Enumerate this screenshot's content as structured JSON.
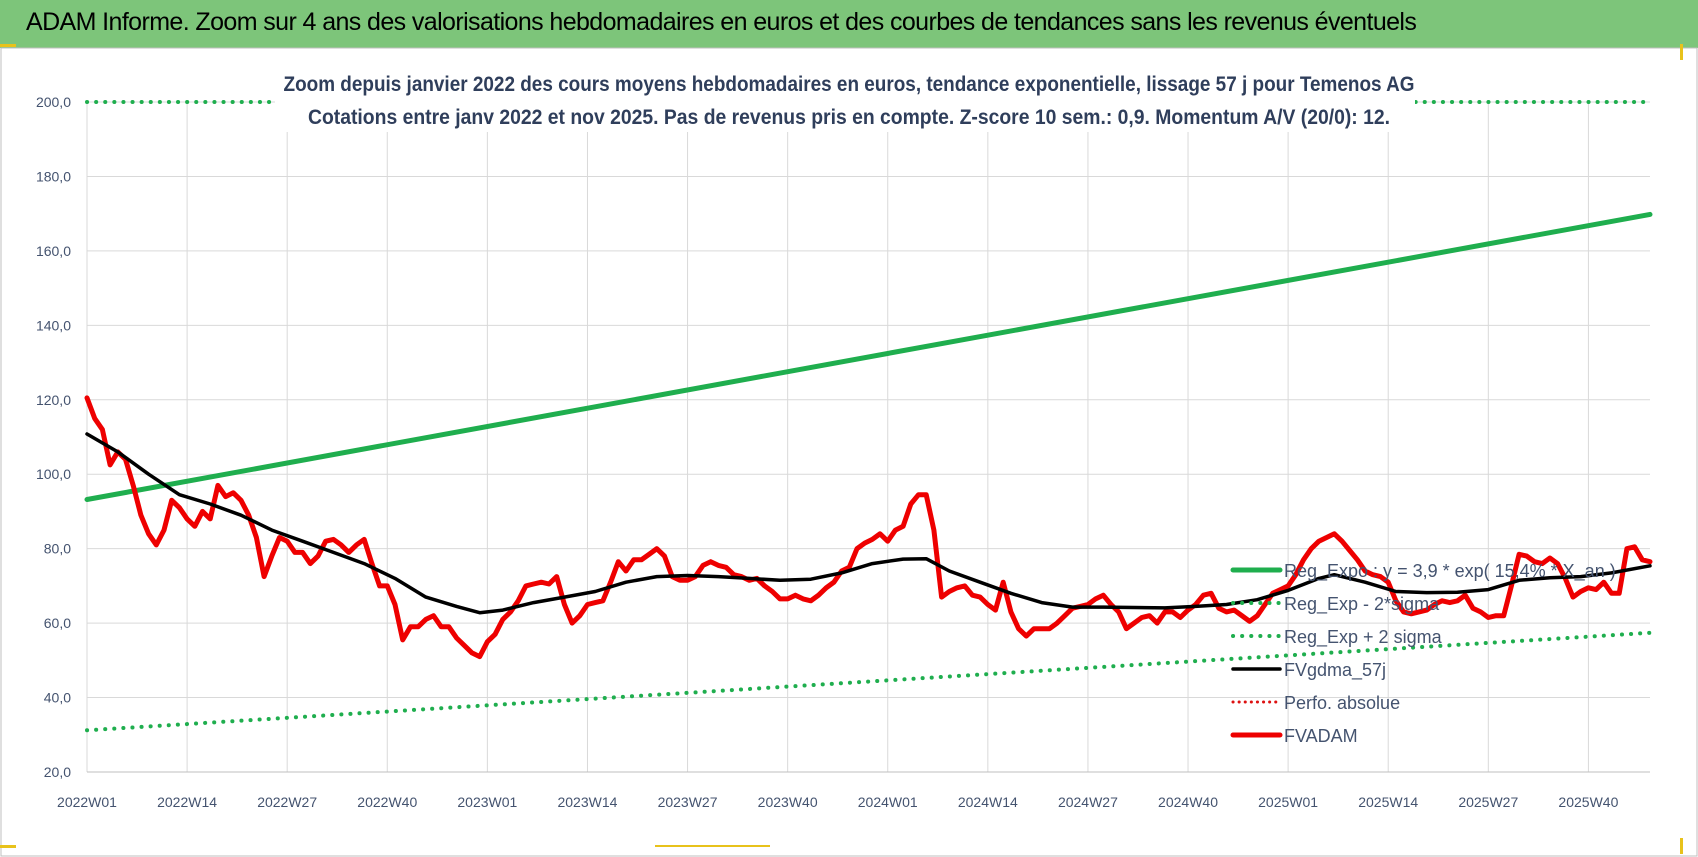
{
  "header": {
    "title": "ADAM Informe. Zoom sur 4 ans des valorisations hebdomadaires en euros et des courbes de tendances sans les revenus éventuels"
  },
  "colors": {
    "banner": "#7dc57a",
    "reg_exp": "#1fae4e",
    "fvgdma": "#000000",
    "fvadam": "#ee0000",
    "perfo": "#dd1111",
    "grid": "#d9d9d9"
  },
  "chart_data": {
    "type": "line",
    "title_line1": "Zoom depuis janvier 2022 des cours moyens hebdomadaires en euros, tendance exponentielle, lissage 57 j pour Temenos AG",
    "title_line2": "Cotations entre janv 2022 et nov 2025. Pas de revenus pris en compte. Z-score 10 sem.: 0,9. Momentum A/V (20/0): 12.",
    "x_start_week": 0,
    "x_end_week": 203,
    "x_tick_weeks": [
      0,
      13,
      26,
      39,
      52,
      65,
      78,
      91,
      104,
      117,
      130,
      143,
      156,
      169,
      182,
      195
    ],
    "x_tick_labels": [
      "2022W01",
      "2022W14",
      "2022W27",
      "2022W40",
      "2023W01",
      "2023W14",
      "2023W27",
      "2023W40",
      "2024W01",
      "2024W14",
      "2024W27",
      "2024W40",
      "2025W01",
      "2025W14",
      "2025W27",
      "2025W40"
    ],
    "ylim": [
      20,
      200
    ],
    "y_ticks": [
      20,
      40,
      60,
      80,
      100,
      120,
      140,
      160,
      180,
      200
    ],
    "y_tick_labels": [
      "20,0",
      "40,0",
      "60,0",
      "80,0",
      "100,0",
      "120,0",
      "140,0",
      "160,0",
      "180,0",
      "200,0"
    ],
    "legend": [
      {
        "key": "reg_exp",
        "label": "Reg_Expo : y = 3,9 * exp( 15,4% * X_an )",
        "style": "solid-thick"
      },
      {
        "key": "reg_minus",
        "label": "Reg_Exp - 2*sigma",
        "style": "dotted"
      },
      {
        "key": "reg_plus",
        "label": "Reg_Exp + 2 sigma",
        "style": "dotted"
      },
      {
        "key": "fvgdma",
        "label": "FVgdma_57j",
        "style": "solid"
      },
      {
        "key": "perfo",
        "label": "Perfo. absolue",
        "style": "dotted-red"
      },
      {
        "key": "fvadam",
        "label": "FVADAM",
        "style": "solid-thick-red"
      }
    ],
    "series": [
      {
        "name": "Reg_Expo : y = 3,9 * exp( 15,4% * X_an )",
        "key": "reg_exp",
        "points": [
          [
            0,
            93.2
          ],
          [
            203,
            169.8
          ]
        ]
      },
      {
        "name": "Reg_Exp - 2*sigma",
        "key": "reg_minus",
        "points": [
          [
            0,
            31.2
          ],
          [
            203,
            57.4
          ]
        ]
      },
      {
        "name": "Reg_Exp + 2 sigma",
        "key": "reg_plus",
        "points": [
          [
            0,
            200
          ],
          [
            25,
            200
          ],
          [
            174,
            200
          ],
          [
            203,
            200
          ]
        ]
      },
      {
        "name": "FVgdma_57j",
        "key": "fvgdma",
        "points": [
          [
            0,
            110.8
          ],
          [
            4,
            106
          ],
          [
            8,
            100
          ],
          [
            12,
            94.5
          ],
          [
            16,
            92
          ],
          [
            20,
            89
          ],
          [
            24,
            85
          ],
          [
            28,
            82
          ],
          [
            32,
            79
          ],
          [
            36,
            76
          ],
          [
            40,
            72
          ],
          [
            44,
            67
          ],
          [
            48,
            64.5
          ],
          [
            51,
            62.8
          ],
          [
            54,
            63.5
          ],
          [
            58,
            65.5
          ],
          [
            62,
            67
          ],
          [
            66,
            68.5
          ],
          [
            70,
            71
          ],
          [
            74,
            72.5
          ],
          [
            78,
            72.8
          ],
          [
            82,
            72.5
          ],
          [
            86,
            72
          ],
          [
            90,
            71.5
          ],
          [
            94,
            71.8
          ],
          [
            98,
            73.5
          ],
          [
            102,
            76
          ],
          [
            106,
            77.2
          ],
          [
            109,
            77.3
          ],
          [
            112,
            74
          ],
          [
            116,
            71
          ],
          [
            120,
            68
          ],
          [
            124,
            65.5
          ],
          [
            128,
            64.3
          ],
          [
            132,
            64.3
          ],
          [
            136,
            64.2
          ],
          [
            140,
            64.1
          ],
          [
            144,
            64.5
          ],
          [
            148,
            65
          ],
          [
            152,
            66.3
          ],
          [
            156,
            68.8
          ],
          [
            160,
            72
          ],
          [
            162,
            73
          ],
          [
            166,
            71
          ],
          [
            170,
            68.5
          ],
          [
            174,
            68.2
          ],
          [
            178,
            68.3
          ],
          [
            182,
            69
          ],
          [
            186,
            71.5
          ],
          [
            190,
            72.2
          ],
          [
            194,
            72.5
          ],
          [
            198,
            73.5
          ],
          [
            203,
            75.4
          ]
        ]
      },
      {
        "name": "FVADAM",
        "key": "fvadam",
        "points": [
          [
            0,
            120.5
          ],
          [
            1,
            115
          ],
          [
            2,
            112
          ],
          [
            3,
            102.5
          ],
          [
            4,
            106
          ],
          [
            5,
            104
          ],
          [
            6,
            97
          ],
          [
            7,
            89
          ],
          [
            8,
            84
          ],
          [
            9,
            81
          ],
          [
            10,
            85
          ],
          [
            11,
            93
          ],
          [
            12,
            91
          ],
          [
            13,
            88
          ],
          [
            14,
            86
          ],
          [
            15,
            90
          ],
          [
            16,
            88
          ],
          [
            17,
            97
          ],
          [
            18,
            94
          ],
          [
            19,
            95
          ],
          [
            20,
            93
          ],
          [
            21,
            89
          ],
          [
            22,
            83
          ],
          [
            23,
            72.5
          ],
          [
            24,
            78
          ],
          [
            25,
            83
          ],
          [
            26,
            82
          ],
          [
            27,
            79
          ],
          [
            28,
            79
          ],
          [
            29,
            76
          ],
          [
            30,
            78
          ],
          [
            31,
            82
          ],
          [
            32,
            82.5
          ],
          [
            33,
            81
          ],
          [
            34,
            79
          ],
          [
            35,
            81
          ],
          [
            36,
            82.5
          ],
          [
            37,
            76
          ],
          [
            38,
            70
          ],
          [
            39,
            70
          ],
          [
            40,
            65
          ],
          [
            41,
            55.5
          ],
          [
            42,
            59
          ],
          [
            43,
            59
          ],
          [
            44,
            61
          ],
          [
            45,
            62
          ],
          [
            46,
            59
          ],
          [
            47,
            59
          ],
          [
            48,
            56
          ],
          [
            49,
            54
          ],
          [
            50,
            52
          ],
          [
            51,
            51
          ],
          [
            52,
            55
          ],
          [
            53,
            57
          ],
          [
            54,
            61
          ],
          [
            55,
            63
          ],
          [
            56,
            66
          ],
          [
            57,
            70
          ],
          [
            58,
            70.5
          ],
          [
            59,
            71
          ],
          [
            60,
            70.5
          ],
          [
            61,
            72.5
          ],
          [
            62,
            65
          ],
          [
            63,
            60
          ],
          [
            64,
            62
          ],
          [
            65,
            65
          ],
          [
            66,
            65.5
          ],
          [
            67,
            66
          ],
          [
            68,
            71
          ],
          [
            69,
            76.5
          ],
          [
            70,
            74
          ],
          [
            71,
            77
          ],
          [
            72,
            77
          ],
          [
            73,
            78.5
          ],
          [
            74,
            80
          ],
          [
            75,
            78
          ],
          [
            76,
            72.5
          ],
          [
            77,
            71.5
          ],
          [
            78,
            71.5
          ],
          [
            79,
            72.5
          ],
          [
            80,
            75.5
          ],
          [
            81,
            76.5
          ],
          [
            82,
            75.5
          ],
          [
            83,
            75
          ],
          [
            84,
            73
          ],
          [
            85,
            72.5
          ],
          [
            86,
            71.5
          ],
          [
            87,
            72
          ],
          [
            88,
            70
          ],
          [
            89,
            68.5
          ],
          [
            90,
            66.5
          ],
          [
            91,
            66.5
          ],
          [
            92,
            67.5
          ],
          [
            93,
            66.5
          ],
          [
            94,
            66
          ],
          [
            95,
            67.5
          ],
          [
            96,
            69.5
          ],
          [
            97,
            71
          ],
          [
            98,
            74
          ],
          [
            99,
            75
          ],
          [
            100,
            80
          ],
          [
            101,
            81.5
          ],
          [
            102,
            82.5
          ],
          [
            103,
            84
          ],
          [
            104,
            82
          ],
          [
            105,
            85
          ],
          [
            106,
            86
          ],
          [
            107,
            92
          ],
          [
            108,
            94.5
          ],
          [
            109,
            94.5
          ],
          [
            110,
            85
          ],
          [
            111,
            67
          ],
          [
            112,
            68.5
          ],
          [
            113,
            69.5
          ],
          [
            114,
            70
          ],
          [
            115,
            67.5
          ],
          [
            116,
            67
          ],
          [
            117,
            65
          ],
          [
            118,
            63.5
          ],
          [
            119,
            71
          ],
          [
            120,
            63
          ],
          [
            121,
            58.5
          ],
          [
            122,
            56.5
          ],
          [
            123,
            58.5
          ],
          [
            124,
            58.5
          ],
          [
            125,
            58.5
          ],
          [
            126,
            60
          ],
          [
            127,
            62
          ],
          [
            128,
            64
          ],
          [
            129,
            64.5
          ],
          [
            130,
            65
          ],
          [
            131,
            66.5
          ],
          [
            132,
            67.5
          ],
          [
            133,
            65
          ],
          [
            134,
            63
          ],
          [
            135,
            58.5
          ],
          [
            136,
            60
          ],
          [
            137,
            61.5
          ],
          [
            138,
            62
          ],
          [
            139,
            60
          ],
          [
            140,
            63
          ],
          [
            141,
            63
          ],
          [
            142,
            61.5
          ],
          [
            143,
            63.5
          ],
          [
            144,
            65
          ],
          [
            145,
            67.5
          ],
          [
            146,
            68
          ],
          [
            147,
            64
          ],
          [
            148,
            63
          ],
          [
            149,
            63.5
          ],
          [
            150,
            62
          ],
          [
            151,
            60.5
          ],
          [
            152,
            62
          ],
          [
            153,
            65
          ],
          [
            154,
            68
          ],
          [
            155,
            69
          ],
          [
            156,
            70
          ],
          [
            157,
            73
          ],
          [
            158,
            77
          ],
          [
            159,
            80
          ],
          [
            160,
            82
          ],
          [
            161,
            83
          ],
          [
            162,
            84
          ],
          [
            163,
            82
          ],
          [
            164,
            79.5
          ],
          [
            165,
            77
          ],
          [
            166,
            74
          ],
          [
            167,
            73
          ],
          [
            168,
            72.5
          ],
          [
            169,
            71
          ],
          [
            170,
            66
          ],
          [
            171,
            63
          ],
          [
            172,
            62.5
          ],
          [
            173,
            63
          ],
          [
            174,
            63.5
          ],
          [
            175,
            65
          ],
          [
            176,
            66
          ],
          [
            177,
            65.5
          ],
          [
            178,
            66
          ],
          [
            179,
            67.5
          ],
          [
            180,
            64
          ],
          [
            181,
            63
          ],
          [
            182,
            61.5
          ],
          [
            183,
            62
          ],
          [
            184,
            62
          ],
          [
            185,
            70
          ],
          [
            186,
            78.5
          ],
          [
            187,
            78
          ],
          [
            188,
            76.5
          ],
          [
            189,
            76
          ],
          [
            190,
            77.5
          ],
          [
            191,
            76
          ],
          [
            192,
            72
          ],
          [
            193,
            67
          ],
          [
            194,
            68.5
          ],
          [
            195,
            69.5
          ],
          [
            196,
            69
          ],
          [
            197,
            71
          ],
          [
            198,
            68
          ],
          [
            199,
            68
          ],
          [
            200,
            80
          ],
          [
            201,
            80.5
          ],
          [
            202,
            77
          ],
          [
            203,
            76.5
          ]
        ]
      }
    ]
  }
}
